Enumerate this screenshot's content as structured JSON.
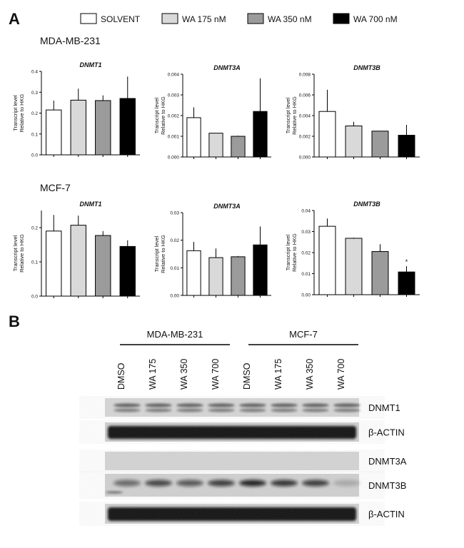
{
  "panel_a_label": "A",
  "panel_b_label": "B",
  "legend": [
    {
      "label": "SOLVENT",
      "color": "#ffffff"
    },
    {
      "label": "WA 175 nM",
      "color": "#d9d9d9"
    },
    {
      "label": "WA 350 nM",
      "color": "#9b9b9b"
    },
    {
      "label": "WA 700 nM",
      "color": "#000000"
    }
  ],
  "rows": [
    {
      "cell_line": "MDA-MB-231"
    },
    {
      "cell_line": "MCF-7"
    }
  ],
  "chart_data": [
    {
      "type": "bar",
      "title": "DNMT1",
      "ylabel_line1": "Transcript level",
      "ylabel_line2": "Relative to HKG",
      "ylim": [
        0,
        0.4
      ],
      "yticks": [
        "0.0",
        "0.1",
        "0.2",
        "0.3",
        "0.4"
      ],
      "values": [
        0.215,
        0.262,
        0.26,
        0.27
      ],
      "errors": [
        0.045,
        0.055,
        0.025,
        0.105
      ],
      "significance": [
        "",
        "",
        "",
        ""
      ]
    },
    {
      "type": "bar",
      "title": "DNMT3A",
      "ylabel_line1": "Transcript level",
      "ylabel_line2": "Relative to HKG",
      "ylim": [
        0,
        0.004
      ],
      "yticks": [
        "0.000",
        "0.001",
        "0.002",
        "0.003",
        "0.004"
      ],
      "values": [
        0.0019,
        0.00115,
        0.001,
        0.0022
      ],
      "errors": [
        0.0005,
        0,
        3e-05,
        0.0016
      ],
      "significance": [
        "",
        "",
        "",
        ""
      ]
    },
    {
      "type": "bar",
      "title": "DNMT3B",
      "ylabel_line1": "Transcript level",
      "ylabel_line2": "Relative to HKG",
      "ylim": [
        0,
        0.008
      ],
      "yticks": [
        "0.000",
        "0.002",
        "0.004",
        "0.006",
        "0.008"
      ],
      "values": [
        0.0044,
        0.003,
        0.0025,
        0.0021
      ],
      "errors": [
        0.0021,
        0.0004,
        3e-05,
        0.001
      ],
      "significance": [
        "",
        "",
        "",
        ""
      ]
    },
    {
      "type": "bar",
      "title": "DNMT1",
      "ylabel_line1": "Transcript level",
      "ylabel_line2": "Relative to HKG",
      "ylim": [
        0,
        0.25
      ],
      "yticks": [
        "0.0",
        "0.1",
        "0.2"
      ],
      "values": [
        0.19,
        0.207,
        0.177,
        0.145
      ],
      "errors": [
        0.047,
        0.028,
        0.013,
        0.018
      ],
      "significance": [
        "",
        "",
        "",
        ""
      ]
    },
    {
      "type": "bar",
      "title": "DNMT3A",
      "ylabel_line1": "Transcript level",
      "ylabel_line2": "Relative to HKG",
      "ylim": [
        0,
        0.03
      ],
      "yticks": [
        "0.00",
        "0.01",
        "0.02",
        "0.03"
      ],
      "values": [
        0.0162,
        0.0137,
        0.014,
        0.0183
      ],
      "errors": [
        0.0032,
        0.0033,
        0.0003,
        0.0067
      ],
      "significance": [
        "",
        "",
        "",
        ""
      ]
    },
    {
      "type": "bar",
      "title": "DNMT3B",
      "ylabel_line1": "Transcript level",
      "ylabel_line2": "Relative to HKG",
      "ylim": [
        0,
        0.04
      ],
      "yticks": [
        "0.00",
        "0.01",
        "0.02",
        "0.03",
        "0.04"
      ],
      "values": [
        0.0325,
        0.0268,
        0.0205,
        0.0108
      ],
      "errors": [
        0.0037,
        0.0003,
        0.0035,
        0.0028
      ],
      "significance": [
        "",
        "",
        "",
        "*"
      ]
    }
  ],
  "blot": {
    "groups": [
      {
        "label": "MDA-MB-231"
      },
      {
        "label": "MCF-7"
      }
    ],
    "lanes": [
      "DMSO",
      "WA 175",
      "WA 350",
      "WA 700",
      "DMSO",
      "WA 175",
      "WA 350",
      "WA 700"
    ],
    "bands": [
      {
        "label": "DNMT1"
      },
      {
        "label": "β-ACTIN"
      },
      {
        "label": "DNMT3A"
      },
      {
        "label": "DNMT3B"
      },
      {
        "label": "β-ACTIN"
      }
    ]
  }
}
